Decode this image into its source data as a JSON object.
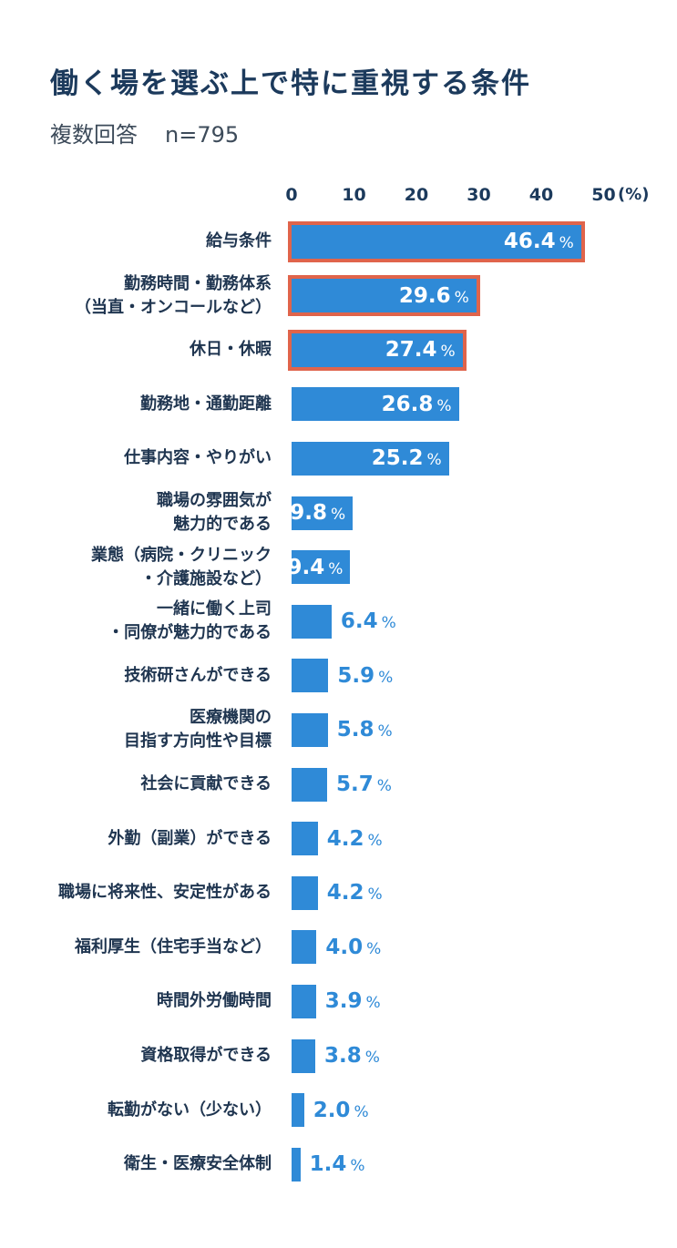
{
  "title": "働く場を選ぶ上で特に重視する条件",
  "subtitle": "複数回答",
  "sample_size": "n=795",
  "colors": {
    "bar": "#2f8ad7",
    "highlight": "#e0644b",
    "title": "#1c3a5c"
  },
  "chart_data": {
    "type": "bar",
    "orientation": "horizontal",
    "title": "働く場を選ぶ上で特に重視する条件",
    "subtitle": "複数回答",
    "xlim": [
      0,
      50
    ],
    "x_ticks": [
      "0",
      "10",
      "20",
      "30",
      "40",
      "50"
    ],
    "x_unit": "(%)",
    "value_suffix": "%",
    "categories": [
      "給与条件",
      "勤務時間・勤務体系\n（当直・オンコールなど）",
      "休日・休暇",
      "勤務地・通勤距離",
      "仕事内容・やりがい",
      "職場の雰囲気が\n魅力的である",
      "業態（病院・クリニック\n・介護施設など）",
      "一緒に働く上司\n・同僚が魅力的である",
      "技術研さんができる",
      "医療機関の\n目指す方向性や目標",
      "社会に貢献できる",
      "外勤（副業）ができる",
      "職場に将来性、安定性がある",
      "福利厚生（住宅手当など）",
      "時間外労働時間",
      "資格取得ができる",
      "転勤がない（少ない）",
      "衛生・医療安全体制"
    ],
    "values": [
      46.4,
      29.6,
      27.4,
      26.8,
      25.2,
      9.8,
      9.4,
      6.4,
      5.9,
      5.8,
      5.7,
      4.2,
      4.2,
      4.0,
      3.9,
      3.8,
      2.0,
      1.4
    ],
    "value_labels": [
      "46.4",
      "29.6",
      "27.4",
      "26.8",
      "25.2",
      "9.8",
      "9.4",
      "6.4",
      "5.9",
      "5.8",
      "5.7",
      "4.2",
      "4.2",
      "4.0",
      "3.9",
      "3.8",
      "2.0",
      "1.4"
    ],
    "highlighted": [
      true,
      true,
      true,
      false,
      false,
      false,
      false,
      false,
      false,
      false,
      false,
      false,
      false,
      false,
      false,
      false,
      false,
      false
    ]
  }
}
